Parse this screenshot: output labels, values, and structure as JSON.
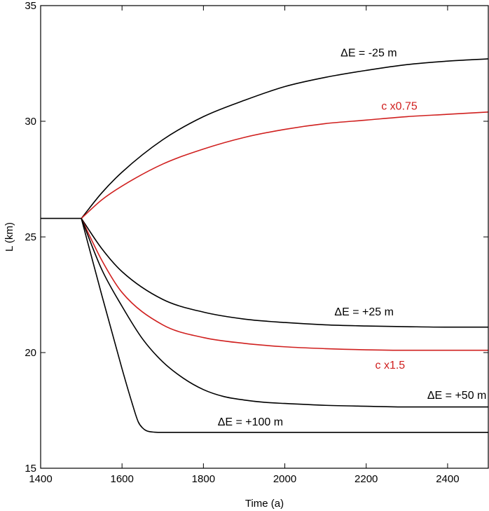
{
  "chart_data": {
    "type": "line",
    "xlabel": "Time (a)",
    "ylabel": "L (km)",
    "xlim": [
      1400,
      2500
    ],
    "ylim": [
      15,
      35
    ],
    "xticks": [
      1400,
      1600,
      1800,
      2000,
      2200,
      2400
    ],
    "yticks": [
      15,
      20,
      25,
      30,
      35
    ],
    "grid": false,
    "colors": {
      "black": "#000000",
      "red": "#d0201f"
    },
    "baseline": {
      "x": [
        1400,
        1500
      ],
      "y": [
        25.8,
        25.8
      ]
    },
    "series": [
      {
        "name": "ΔE = -25 m",
        "color": "#000000",
        "x": [
          1500,
          1550,
          1600,
          1700,
          1800,
          1900,
          2000,
          2100,
          2200,
          2300,
          2400,
          2500
        ],
        "y": [
          25.8,
          26.9,
          27.8,
          29.2,
          30.2,
          30.9,
          31.5,
          31.9,
          32.2,
          32.45,
          32.6,
          32.7
        ]
      },
      {
        "name": "c x0.75",
        "color": "#d0201f",
        "x": [
          1500,
          1550,
          1600,
          1700,
          1800,
          1900,
          2000,
          2100,
          2200,
          2300,
          2400,
          2500
        ],
        "y": [
          25.8,
          26.6,
          27.2,
          28.15,
          28.8,
          29.3,
          29.65,
          29.9,
          30.05,
          30.2,
          30.3,
          30.4
        ]
      },
      {
        "name": "ΔE = +25 m",
        "color": "#000000",
        "x": [
          1500,
          1550,
          1600,
          1700,
          1800,
          1900,
          2000,
          2100,
          2200,
          2300,
          2400,
          2500
        ],
        "y": [
          25.8,
          24.5,
          23.5,
          22.3,
          21.75,
          21.45,
          21.3,
          21.2,
          21.15,
          21.12,
          21.1,
          21.1
        ]
      },
      {
        "name": "c x1.5",
        "color": "#d0201f",
        "x": [
          1500,
          1550,
          1600,
          1700,
          1800,
          1900,
          2000,
          2100,
          2200,
          2300,
          2400,
          2500
        ],
        "y": [
          25.8,
          24.0,
          22.6,
          21.2,
          20.65,
          20.4,
          20.25,
          20.17,
          20.12,
          20.1,
          20.1,
          20.1
        ]
      },
      {
        "name": "ΔE = +50 m",
        "color": "#000000",
        "x": [
          1500,
          1550,
          1600,
          1650,
          1700,
          1750,
          1800,
          1850,
          1900,
          1950,
          2000,
          2100,
          2200,
          2300,
          2400,
          2500
        ],
        "y": [
          25.8,
          23.6,
          22.0,
          20.6,
          19.6,
          18.9,
          18.4,
          18.1,
          17.95,
          17.85,
          17.8,
          17.72,
          17.68,
          17.65,
          17.65,
          17.65
        ]
      },
      {
        "name": "ΔE = +100 m",
        "color": "#000000",
        "x": [
          1500,
          1550,
          1600,
          1625,
          1640,
          1650,
          1660,
          1680,
          1700,
          1800,
          2000,
          2500
        ],
        "y": [
          25.8,
          22.5,
          19.3,
          17.8,
          17.0,
          16.75,
          16.62,
          16.56,
          16.55,
          16.55,
          16.55,
          16.55
        ]
      }
    ],
    "annotations": [
      {
        "text": "ΔE = -25 m",
        "color": "#000000",
        "x": 2137,
        "y": 32.8
      },
      {
        "text": "c x0.75",
        "color": "#d0201f",
        "x": 2237,
        "y": 30.5
      },
      {
        "text": "ΔE = +25 m",
        "color": "#000000",
        "x": 2122,
        "y": 21.6
      },
      {
        "text": "c x1.5",
        "color": "#d0201f",
        "x": 2222,
        "y": 19.3
      },
      {
        "text": "ΔE = +50 m",
        "color": "#000000",
        "x": 2350,
        "y": 18.0
      },
      {
        "text": "ΔE = +100 m",
        "color": "#000000",
        "x": 1835,
        "y": 16.85
      }
    ]
  }
}
